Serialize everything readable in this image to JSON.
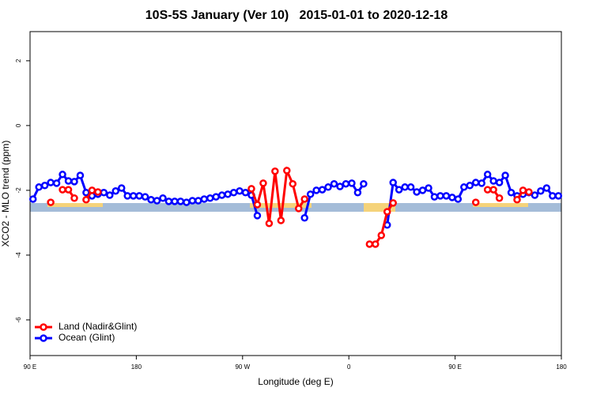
{
  "chart_data": {
    "type": "line",
    "title": "10S-5S January (Ver 10)   2015-01-01 to 2020-12-18",
    "x_label": "Longitude (deg E)",
    "y_label": "XCO2 - MLO trend (ppm)",
    "xlim": [
      90,
      540
    ],
    "ylim": [
      -7.1,
      2.9
    ],
    "xticks": [
      {
        "value": 90,
        "label": "90 E"
      },
      180,
      {
        "value": 270,
        "label": "90 W"
      },
      {
        "value": 360,
        "label": "0"
      },
      {
        "value": 450,
        "label": "90 E"
      },
      {
        "value": 540,
        "label": "180"
      }
    ],
    "yticks": [
      -6,
      -4,
      -2,
      0,
      2
    ],
    "legend": "bottom-left",
    "x": [
      92.5,
      97.5,
      102.5,
      107.5,
      112.5,
      117.5,
      122.5,
      127.5,
      132.5,
      137.5,
      142.5,
      147.5,
      152.5,
      157.5,
      162.5,
      167.5,
      172.5,
      177.5,
      182.5,
      187.5,
      192.5,
      197.5,
      202.5,
      207.5,
      212.5,
      217.5,
      222.5,
      227.5,
      232.5,
      237.5,
      242.5,
      247.5,
      252.5,
      257.5,
      262.5,
      267.5,
      272.5,
      277.5,
      282.5,
      287.5,
      292.5,
      297.5,
      302.5,
      307.5,
      312.5,
      317.5,
      322.5,
      327.5,
      332.5,
      337.5,
      342.5,
      347.5,
      352.5,
      357.5,
      362.5,
      367.5,
      372.5,
      377.5,
      382.5,
      387.5,
      392.5,
      397.5,
      402.5,
      407.5,
      412.5,
      417.5,
      422.5,
      427.5,
      432.5,
      437.5,
      442.5,
      447.5,
      452.5,
      457.5,
      462.5,
      467.5,
      472.5,
      477.5,
      482.5,
      487.5,
      492.5,
      497.5,
      502.5,
      507.5,
      512.5,
      517.5,
      522.5,
      527.5,
      532.5,
      537.5
    ],
    "series": [
      {
        "name": "Land (Nadir&Glint)",
        "color": "#ff0000",
        "values": [
          null,
          null,
          null,
          -2.37,
          null,
          -1.98,
          -1.98,
          -2.24,
          null,
          -2.29,
          -2.0,
          -2.05,
          null,
          null,
          null,
          null,
          null,
          null,
          null,
          null,
          null,
          null,
          null,
          null,
          null,
          null,
          null,
          null,
          null,
          null,
          null,
          null,
          null,
          null,
          null,
          null,
          null,
          -1.95,
          -2.44,
          -1.78,
          -3.02,
          -1.41,
          -2.93,
          -1.39,
          -1.8,
          -2.56,
          -2.27,
          null,
          null,
          null,
          null,
          null,
          null,
          null,
          null,
          null,
          null,
          -3.66,
          -3.66,
          -3.39,
          -2.66,
          -2.39,
          null,
          null,
          null,
          null,
          null,
          null,
          null,
          null,
          null,
          null,
          null,
          null,
          null,
          -2.37,
          null,
          -1.98,
          -1.98,
          -2.24,
          null,
          null,
          -2.29,
          -2.0,
          -2.05,
          null,
          null,
          null,
          null,
          null
        ]
      },
      {
        "name": "Ocean (Glint)",
        "color": "#0000ff",
        "values": [
          -2.27,
          -1.9,
          -1.85,
          -1.76,
          -1.78,
          -1.51,
          -1.71,
          -1.73,
          -1.54,
          -2.07,
          -2.17,
          -2.12,
          -2.07,
          -2.15,
          -2.02,
          -1.93,
          -2.17,
          -2.17,
          -2.17,
          -2.2,
          -2.29,
          -2.32,
          -2.24,
          -2.34,
          -2.34,
          -2.34,
          -2.37,
          -2.32,
          -2.32,
          -2.27,
          -2.24,
          -2.2,
          -2.15,
          -2.12,
          -2.07,
          -2.02,
          -2.07,
          -2.15,
          -2.78,
          null,
          null,
          null,
          null,
          null,
          null,
          null,
          -2.85,
          -2.12,
          -2.0,
          -1.98,
          -1.9,
          -1.8,
          -1.88,
          -1.8,
          -1.78,
          -2.07,
          -1.8,
          null,
          null,
          null,
          -3.07,
          -1.76,
          -1.98,
          -1.9,
          -1.9,
          -2.05,
          -2.0,
          -1.93,
          -2.2,
          -2.17,
          -2.17,
          -2.22,
          -2.27,
          -1.9,
          -1.85,
          -1.76,
          -1.78,
          -1.51,
          -1.71,
          -1.76,
          -1.54,
          -2.07,
          -2.17,
          -2.12,
          -2.07,
          -2.15,
          -2.02,
          -1.93,
          -2.17,
          -2.17
        ]
      }
    ]
  }
}
